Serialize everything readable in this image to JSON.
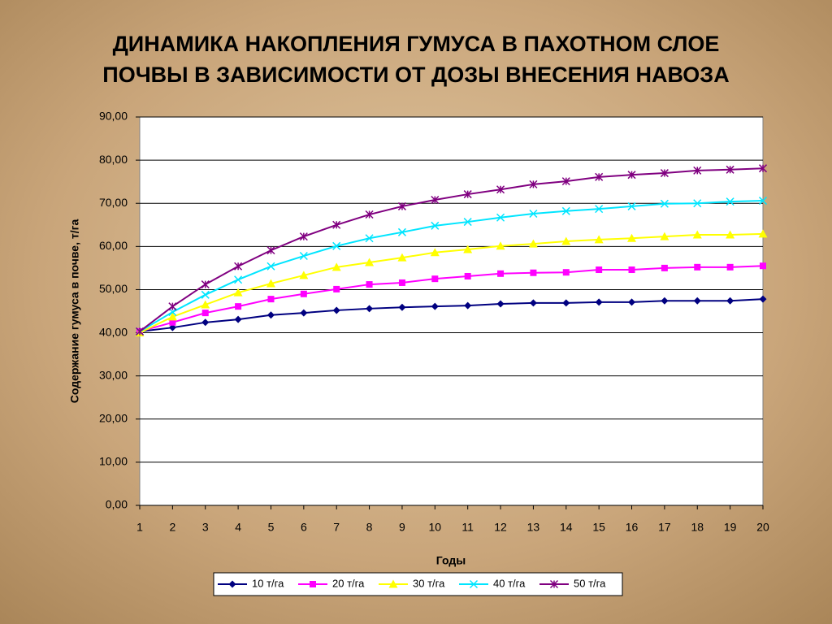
{
  "chart_data": {
    "type": "line",
    "title": "ДИНАМИКА НАКОПЛЕНИЯ ГУМУСА В ПАХОТНОМ СЛОЕ",
    "subtitle": "ПОЧВЫ В ЗАВИСИМОСТИ ОТ ДОЗЫ ВНЕСЕНИЯ НАВОЗА",
    "x_label": "Годы",
    "y_label": "Содержание гумуса в почве, т/га",
    "x": [
      1,
      2,
      3,
      4,
      5,
      6,
      7,
      8,
      9,
      10,
      11,
      12,
      13,
      14,
      15,
      16,
      17,
      18,
      19,
      20
    ],
    "xlim": [
      1,
      20
    ],
    "ylim": [
      0,
      90
    ],
    "yticks": [
      {
        "value": 0,
        "label": "0,00"
      },
      {
        "value": 10,
        "label": "10,00"
      },
      {
        "value": 20,
        "label": "20,00"
      },
      {
        "value": 30,
        "label": "30,00"
      },
      {
        "value": 40,
        "label": "40,00"
      },
      {
        "value": 50,
        "label": "50,00"
      },
      {
        "value": 60,
        "label": "60,00"
      },
      {
        "value": 70,
        "label": "70,00"
      },
      {
        "value": 80,
        "label": "80,00"
      },
      {
        "value": 90,
        "label": "90,00"
      }
    ],
    "grid": true,
    "legend": "bottom",
    "series": [
      {
        "name": "10 т/га",
        "color": "#000080",
        "marker": "diamond",
        "values": [
          40.3,
          41.2,
          42.4,
          43.1,
          44.1,
          44.6,
          45.2,
          45.6,
          45.9,
          46.1,
          46.3,
          46.7,
          46.9,
          46.9,
          47.1,
          47.1,
          47.4,
          47.4,
          47.4,
          47.8
        ]
      },
      {
        "name": "20 т/га",
        "color": "#ff00ff",
        "marker": "square",
        "values": [
          40.3,
          42.4,
          44.6,
          46.1,
          47.8,
          49.0,
          50.1,
          51.2,
          51.6,
          52.5,
          53.1,
          53.7,
          53.9,
          54.0,
          54.6,
          54.6,
          55.0,
          55.2,
          55.2,
          55.5
        ]
      },
      {
        "name": "30 т/га",
        "color": "#ffff00",
        "marker": "triangle",
        "values": [
          40.0,
          43.7,
          46.5,
          49.3,
          51.4,
          53.3,
          55.2,
          56.3,
          57.4,
          58.6,
          59.3,
          60.1,
          60.6,
          61.2,
          61.6,
          61.9,
          62.3,
          62.7,
          62.7,
          62.9
        ]
      },
      {
        "name": "40 т/га",
        "color": "#00e5ff",
        "marker": "x",
        "values": [
          40.3,
          44.8,
          48.8,
          52.3,
          55.4,
          57.8,
          60.1,
          61.9,
          63.3,
          64.8,
          65.7,
          66.7,
          67.6,
          68.2,
          68.7,
          69.3,
          69.9,
          70.0,
          70.4,
          70.6
        ]
      },
      {
        "name": "50 т/га",
        "color": "#800080",
        "marker": "star",
        "values": [
          40.3,
          46.1,
          51.2,
          55.4,
          59.1,
          62.3,
          65.0,
          67.4,
          69.3,
          70.8,
          72.1,
          73.2,
          74.4,
          75.1,
          76.1,
          76.6,
          77.0,
          77.6,
          77.8,
          78.1
        ]
      }
    ]
  }
}
